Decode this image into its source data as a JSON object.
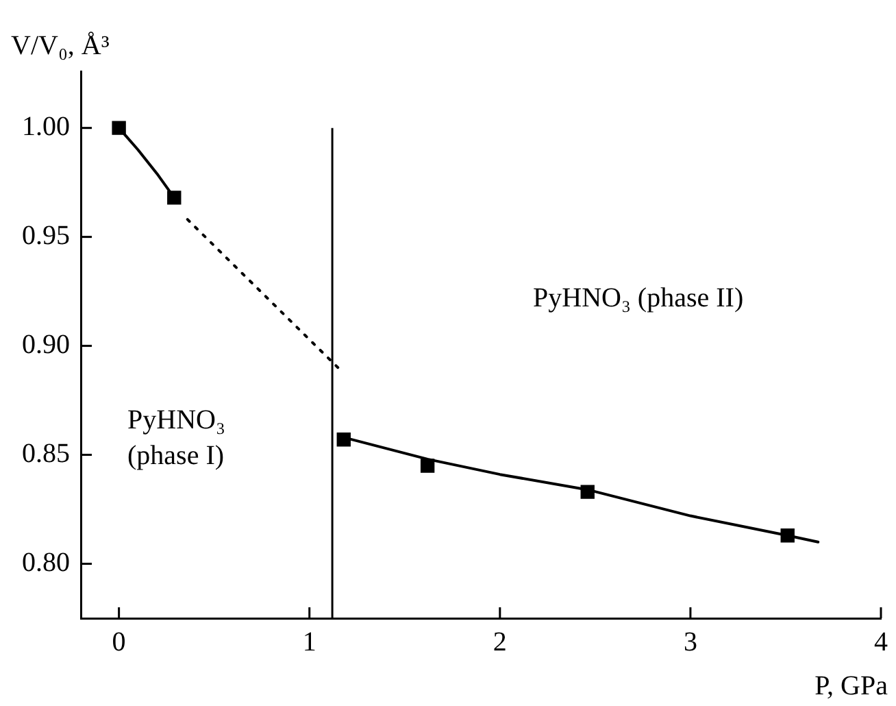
{
  "chart_data": {
    "type": "scatter",
    "xlabel": "P, GPa",
    "ylabel": "V/V₀, Å³",
    "xlim": [
      -0.2,
      4
    ],
    "ylim": [
      0.775,
      1.026
    ],
    "xticks": [
      0,
      1,
      2,
      3,
      4
    ],
    "yticks": [
      {
        "value": 0.8,
        "label": "0.80"
      },
      0.85,
      {
        "value": 0.9,
        "label": "0.90"
      },
      0.95,
      {
        "value": 1.0,
        "label": "1.00"
      }
    ],
    "grid": false,
    "legend": false,
    "marker": "square",
    "series": [
      {
        "type": "line",
        "color": "#000000",
        "marker": "none",
        "line_style": "solid",
        "x": [
          0,
          0.1,
          0.2,
          0.29
        ],
        "values": [
          1.0,
          0.99,
          0.979,
          0.968
        ]
      },
      {
        "type": "line",
        "color": "#000000",
        "marker": "none",
        "line_style": "dotted",
        "x": [
          0.36,
          1.15
        ],
        "values": [
          0.958,
          0.89
        ]
      },
      {
        "type": "line",
        "color": "#000000",
        "marker": "none",
        "line_style": "solid",
        "x": [
          1.18,
          1.62,
          2.0,
          2.46,
          3.0,
          3.51,
          3.67
        ],
        "values": [
          0.858,
          0.848,
          0.841,
          0.834,
          0.822,
          0.813,
          0.81
        ]
      },
      {
        "color": "#000000",
        "x": [
          0,
          0.29,
          1.18,
          1.62,
          2.46,
          3.51
        ],
        "values": [
          1.0,
          0.968,
          0.857,
          0.845,
          0.833,
          0.813
        ]
      }
    ],
    "ref_lines": [
      {
        "axis": "x",
        "value": 1.12,
        "color": "#000000",
        "line_style": "solid"
      }
    ],
    "annotations": [
      "PyHNO₃\n(phase I)",
      "PyHNO₃ (phase II)"
    ]
  }
}
